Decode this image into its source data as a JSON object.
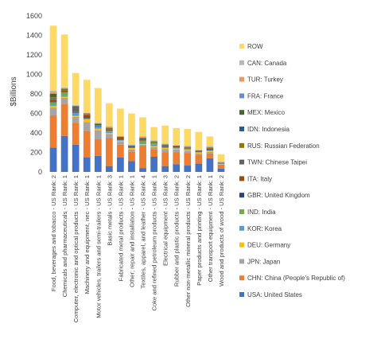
{
  "chart_data": {
    "type": "bar",
    "stacked": true,
    "ylabel": "$Billions",
    "ylim": [
      0,
      1600
    ],
    "yticks": [
      0,
      200,
      400,
      600,
      800,
      1000,
      1200,
      1400,
      1600
    ],
    "grid": false,
    "legend_position": "right",
    "categories": [
      "Food, beverages and tobacco - US Rank: 2",
      "Chemicals and pharmaceuticals - US Rank: 1",
      "Computer, electronic and optical products - US Rank: 1",
      "Machinery and equipment, nec - US Rank: 1",
      "Motor vehicles, trailers and semi-trailers - US Rank: 1",
      "Basic metals - US Rank: 3",
      "Fabricated metal products - US Rank: 1",
      "Other; repair and installation - US Rank: 1",
      "Textiles, apparel, and leather - US Rank: 4",
      "Coke and refined petroleum products - US Rank: 1",
      "Electrical equipment - US Rank: 3",
      "Rubber and plastic products - US Rank: 2",
      "Other non-metallic mineral products - US Rank: 2",
      "Paper products and printing - US Rank: 1",
      "Other transport equipment - US Rank: 1",
      "Wood and products of wood - US Rank: 2"
    ],
    "series": [
      {
        "name": "USA: United States",
        "color": "#4472c4",
        "values": [
          250,
          370,
          280,
          150,
          165,
          60,
          150,
          110,
          40,
          155,
          60,
          80,
          65,
          85,
          140,
          35
        ]
      },
      {
        "name": "CHN: China (People's Republic of)",
        "color": "#ed7d31",
        "values": [
          330,
          330,
          225,
          270,
          170,
          290,
          130,
          100,
          230,
          80,
          140,
          120,
          130,
          90,
          50,
          40
        ]
      },
      {
        "name": "JPN: Japan",
        "color": "#a5a5a5",
        "values": [
          80,
          60,
          60,
          90,
          90,
          40,
          30,
          20,
          10,
          20,
          35,
          30,
          20,
          15,
          15,
          5
        ]
      },
      {
        "name": "DEU: Germany",
        "color": "#ffc000",
        "values": [
          15,
          10,
          10,
          30,
          20,
          10,
          10,
          15,
          5,
          10,
          10,
          10,
          10,
          10,
          10,
          5
        ]
      },
      {
        "name": "KOR: Korea",
        "color": "#5b9bd5",
        "values": [
          10,
          10,
          30,
          10,
          25,
          15,
          10,
          5,
          5,
          15,
          10,
          10,
          5,
          5,
          10,
          0
        ]
      },
      {
        "name": "IND: India",
        "color": "#70ad47",
        "values": [
          30,
          40,
          0,
          0,
          0,
          5,
          0,
          0,
          30,
          15,
          0,
          0,
          10,
          0,
          0,
          0
        ]
      },
      {
        "name": "GBR: United Kingdom",
        "color": "#264478",
        "values": [
          10,
          5,
          5,
          5,
          5,
          0,
          5,
          10,
          0,
          5,
          5,
          5,
          0,
          5,
          10,
          0
        ]
      },
      {
        "name": "ITA: Italy",
        "color": "#9e480e",
        "values": [
          15,
          10,
          5,
          30,
          5,
          10,
          20,
          5,
          10,
          0,
          10,
          10,
          10,
          5,
          5,
          5
        ]
      },
      {
        "name": "TWN: Chinese Taipei",
        "color": "#636363",
        "values": [
          10,
          10,
          60,
          0,
          0,
          10,
          0,
          0,
          5,
          5,
          5,
          5,
          0,
          0,
          0,
          0
        ]
      },
      {
        "name": "RUS: Russian Federation",
        "color": "#997300",
        "values": [
          15,
          5,
          0,
          5,
          0,
          15,
          5,
          0,
          0,
          10,
          0,
          0,
          5,
          0,
          5,
          0
        ]
      },
      {
        "name": "IDN: Indonesia",
        "color": "#255e91",
        "values": [
          10,
          0,
          0,
          0,
          0,
          0,
          0,
          0,
          10,
          0,
          0,
          0,
          0,
          5,
          0,
          5
        ]
      },
      {
        "name": "MEX: Mexico",
        "color": "#43682b",
        "values": [
          25,
          0,
          0,
          5,
          10,
          0,
          0,
          0,
          5,
          0,
          5,
          0,
          0,
          0,
          0,
          0
        ]
      },
      {
        "name": "FRA: France",
        "color": "#698ed0",
        "values": [
          5,
          10,
          5,
          5,
          10,
          0,
          5,
          10,
          0,
          0,
          5,
          0,
          5,
          0,
          10,
          0
        ]
      },
      {
        "name": "TUR: Turkey",
        "color": "#f1975a",
        "values": [
          15,
          0,
          0,
          5,
          0,
          5,
          0,
          0,
          15,
          0,
          0,
          0,
          5,
          0,
          0,
          0
        ]
      },
      {
        "name": "CAN: Canada",
        "color": "#b7b7b7",
        "values": [
          15,
          5,
          5,
          5,
          5,
          10,
          5,
          5,
          0,
          10,
          5,
          5,
          5,
          5,
          10,
          10
        ]
      },
      {
        "name": "ROW",
        "color": "#ffd966",
        "values": [
          665,
          545,
          330,
          335,
          355,
          235,
          280,
          320,
          195,
          135,
          185,
          175,
          170,
          185,
          100,
          75
        ]
      }
    ]
  }
}
